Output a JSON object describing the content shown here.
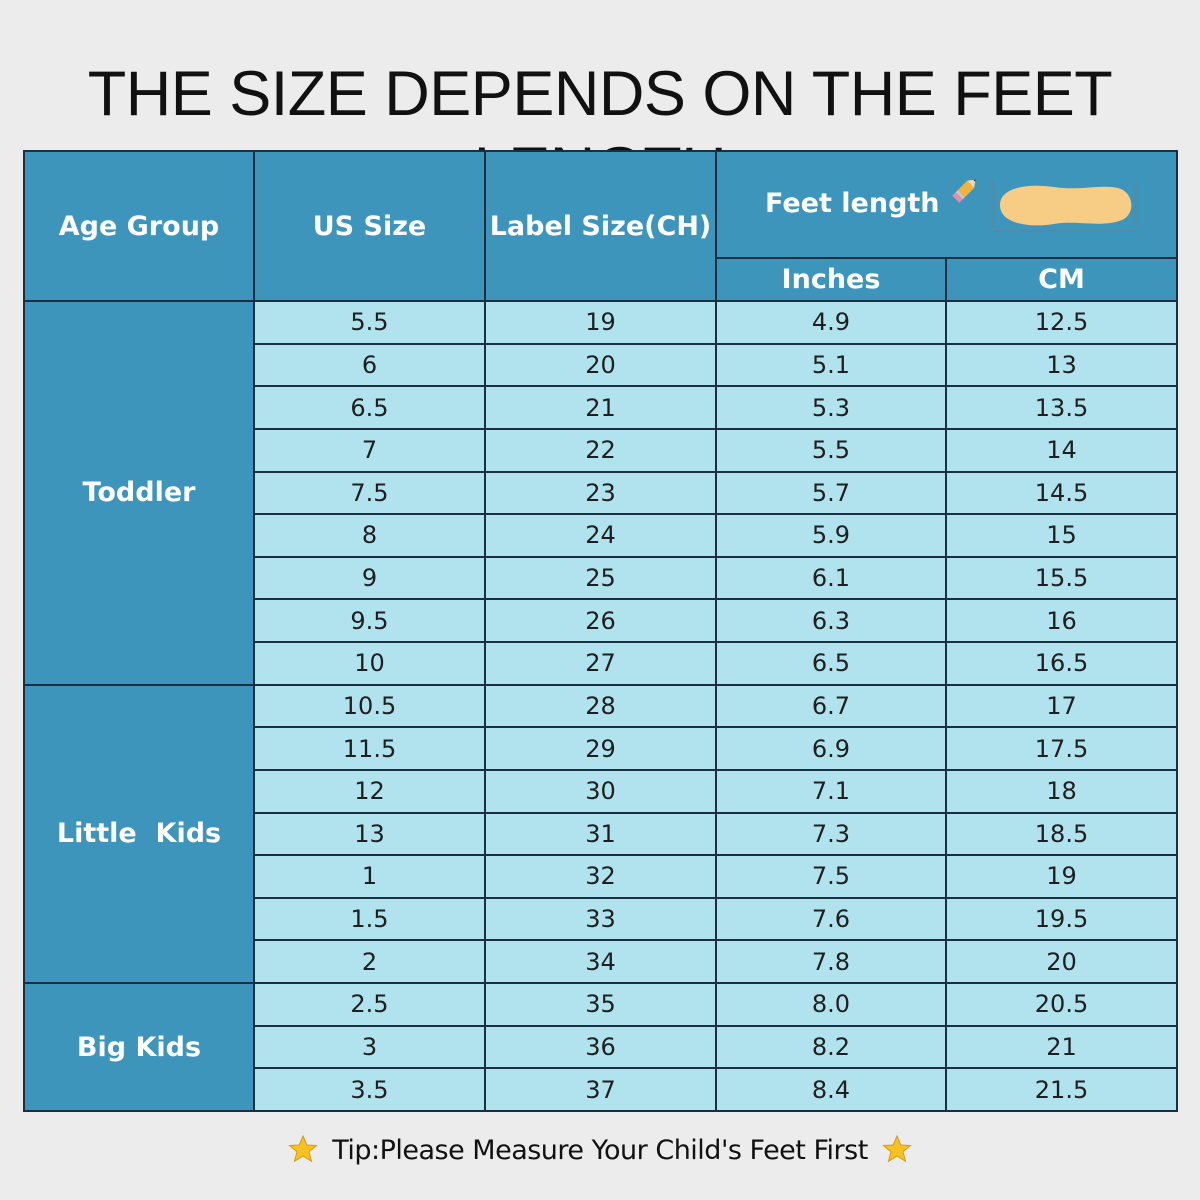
{
  "title": "THE SIZE DEPENDS ON THE FEET LENGTH",
  "headers": {
    "age_group": "Age Group",
    "us_size": "US Size",
    "label_size": "Label Size(CH)",
    "feet_length": "Feet length",
    "inches": "Inches",
    "cm": "CM"
  },
  "groups": [
    {
      "name": "Toddler",
      "rows": [
        {
          "us": "5.5",
          "label": "19",
          "inches": "4.9",
          "cm": "12.5"
        },
        {
          "us": "6",
          "label": "20",
          "inches": "5.1",
          "cm": "13"
        },
        {
          "us": "6.5",
          "label": "21",
          "inches": "5.3",
          "cm": "13.5"
        },
        {
          "us": "7",
          "label": "22",
          "inches": "5.5",
          "cm": "14"
        },
        {
          "us": "7.5",
          "label": "23",
          "inches": "5.7",
          "cm": "14.5"
        },
        {
          "us": "8",
          "label": "24",
          "inches": "5.9",
          "cm": "15"
        },
        {
          "us": "9",
          "label": "25",
          "inches": "6.1",
          "cm": "15.5"
        },
        {
          "us": "9.5",
          "label": "26",
          "inches": "6.3",
          "cm": "16"
        },
        {
          "us": "10",
          "label": "27",
          "inches": "6.5",
          "cm": "16.5"
        }
      ]
    },
    {
      "name": "Little  Kids",
      "rows": [
        {
          "us": "10.5",
          "label": "28",
          "inches": "6.7",
          "cm": "17"
        },
        {
          "us": "11.5",
          "label": "29",
          "inches": "6.9",
          "cm": "17.5"
        },
        {
          "us": "12",
          "label": "30",
          "inches": "7.1",
          "cm": "18"
        },
        {
          "us": "13",
          "label": "31",
          "inches": "7.3",
          "cm": "18.5"
        },
        {
          "us": "1",
          "label": "32",
          "inches": "7.5",
          "cm": "19"
        },
        {
          "us": "1.5",
          "label": "33",
          "inches": "7.6",
          "cm": "19.5"
        },
        {
          "us": "2",
          "label": "34",
          "inches": "7.8",
          "cm": "20"
        }
      ]
    },
    {
      "name": "Big Kids",
      "rows": [
        {
          "us": "2.5",
          "label": "35",
          "inches": "8.0",
          "cm": "20.5"
        },
        {
          "us": "3",
          "label": "36",
          "inches": "8.2",
          "cm": "21"
        },
        {
          "us": "3.5",
          "label": "37",
          "inches": "8.4",
          "cm": "21.5"
        }
      ]
    }
  ],
  "tip": "Tip:Please Measure Your Child's Feet First",
  "icons": {
    "pencil": "pencil-icon",
    "insole": "insole-icon",
    "star": "star-icon"
  },
  "colors": {
    "header_bg": "#3d95bc",
    "cell_bg": "#b1e3ee",
    "star": "#f6c223",
    "insole": "#f7cd86"
  }
}
